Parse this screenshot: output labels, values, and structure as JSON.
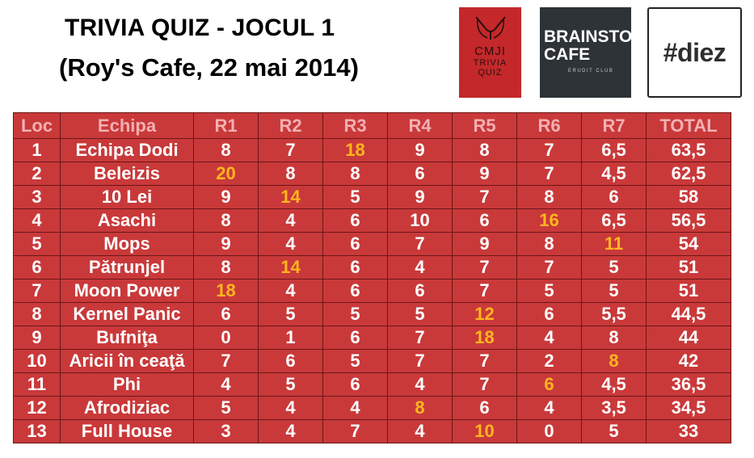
{
  "header": {
    "title_line1": "TRIVIA QUIZ - JOCUL 1",
    "title_line2": "(Roy's Cafe, 22 mai 2014)"
  },
  "logos": {
    "cmji": {
      "line1": "CMJI",
      "line2": "TRIVIA",
      "line3": "QUIZ"
    },
    "brainstorm": {
      "line1": "BRAINSTORM",
      "line2": "CAFE",
      "line3": "ERUDIT CLUB"
    },
    "diez": {
      "text": "#diez"
    }
  },
  "colors": {
    "table_bg": "#c9393a",
    "header_text": "#f3b0b2",
    "highlight": "#ffb51e",
    "cell_text": "#ffffff",
    "border": "#6b1616"
  },
  "table": {
    "columns": [
      "Loc",
      "Echipa",
      "R1",
      "R2",
      "R3",
      "R4",
      "R5",
      "R6",
      "R7",
      "TOTAL"
    ],
    "rows": [
      {
        "loc": "1",
        "team": "Echipa Dodi",
        "r": [
          "8",
          "7",
          "18",
          "9",
          "8",
          "7",
          "6,5"
        ],
        "total": "63,5",
        "best": [
          2
        ]
      },
      {
        "loc": "2",
        "team": "Beleizis",
        "r": [
          "20",
          "8",
          "8",
          "6",
          "9",
          "7",
          "4,5"
        ],
        "total": "62,5",
        "best": [
          0
        ]
      },
      {
        "loc": "3",
        "team": "10 Lei",
        "r": [
          "9",
          "14",
          "5",
          "9",
          "7",
          "8",
          "6"
        ],
        "total": "58",
        "best": [
          1
        ]
      },
      {
        "loc": "4",
        "team": "Asachi",
        "r": [
          "8",
          "4",
          "6",
          "10",
          "6",
          "16",
          "6,5"
        ],
        "total": "56,5",
        "best": [
          5
        ]
      },
      {
        "loc": "5",
        "team": "Mops",
        "r": [
          "9",
          "4",
          "6",
          "7",
          "9",
          "8",
          "11"
        ],
        "total": "54",
        "best": [
          6
        ]
      },
      {
        "loc": "6",
        "team": "Pătrunjel",
        "r": [
          "8",
          "14",
          "6",
          "4",
          "7",
          "7",
          "5"
        ],
        "total": "51",
        "best": [
          1
        ]
      },
      {
        "loc": "7",
        "team": "Moon Power",
        "r": [
          "18",
          "4",
          "6",
          "6",
          "7",
          "5",
          "5"
        ],
        "total": "51",
        "best": [
          0
        ]
      },
      {
        "loc": "8",
        "team": "Kernel Panic",
        "r": [
          "6",
          "5",
          "5",
          "5",
          "12",
          "6",
          "5,5"
        ],
        "total": "44,5",
        "best": [
          4
        ]
      },
      {
        "loc": "9",
        "team": "Bufniţa",
        "r": [
          "0",
          "1",
          "6",
          "7",
          "18",
          "4",
          "8"
        ],
        "total": "44",
        "best": [
          4
        ]
      },
      {
        "loc": "10",
        "team": "Aricii în ceaţă",
        "r": [
          "7",
          "6",
          "5",
          "7",
          "7",
          "2",
          "8"
        ],
        "total": "42",
        "best": [
          6
        ]
      },
      {
        "loc": "11",
        "team": "Phi",
        "r": [
          "4",
          "5",
          "6",
          "4",
          "7",
          "6",
          "4,5"
        ],
        "total": "36,5",
        "best": [
          5
        ]
      },
      {
        "loc": "12",
        "team": "Afrodiziac",
        "r": [
          "5",
          "4",
          "4",
          "8",
          "6",
          "4",
          "3,5"
        ],
        "total": "34,5",
        "best": [
          3
        ]
      },
      {
        "loc": "13",
        "team": "Full House",
        "r": [
          "3",
          "4",
          "7",
          "4",
          "10",
          "0",
          "5"
        ],
        "total": "33",
        "best": [
          4
        ]
      }
    ]
  }
}
